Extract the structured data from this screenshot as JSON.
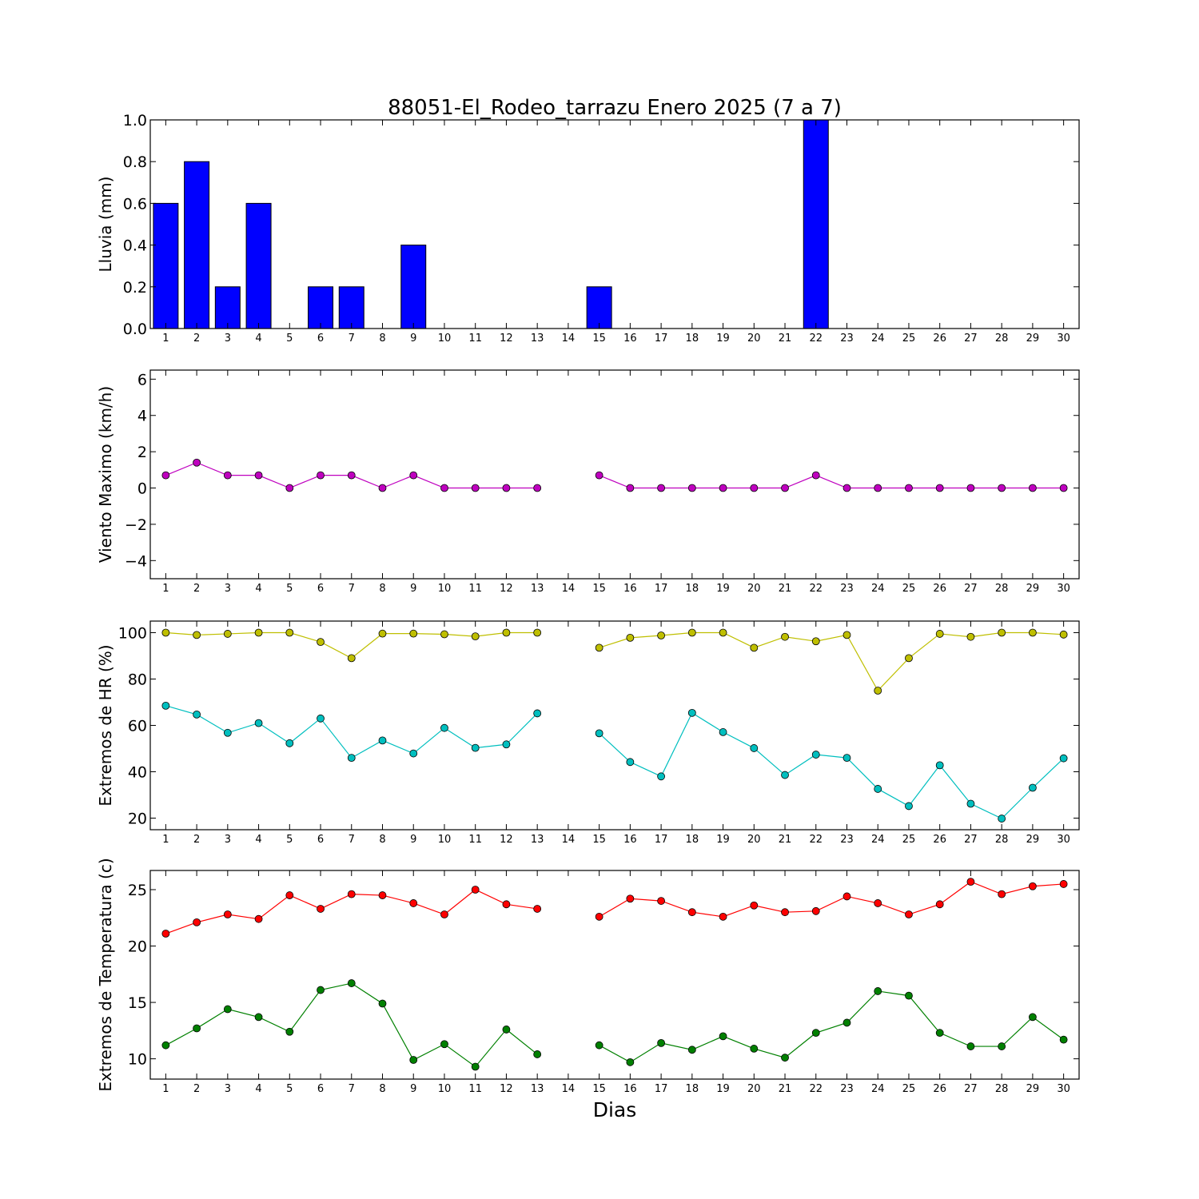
{
  "chart_data": {
    "title": "88051-El_Rodeo_tarrazu Enero 2025  (7 a 7)",
    "xlabel": "Dias",
    "x": [
      1,
      2,
      3,
      4,
      5,
      6,
      7,
      8,
      9,
      10,
      11,
      12,
      13,
      14,
      15,
      16,
      17,
      18,
      19,
      20,
      21,
      22,
      23,
      24,
      25,
      26,
      27,
      28,
      29,
      30
    ],
    "xlim": [
      0.5,
      30.5
    ],
    "panels": [
      {
        "type": "bar",
        "ylabel": "Lluvia (mm)",
        "ylim": [
          0,
          1.0
        ],
        "yticks": [
          0.0,
          0.2,
          0.4,
          0.6,
          0.8,
          1.0
        ],
        "ytick_labels": [
          "0.0",
          "0.2",
          "0.4",
          "0.6",
          "0.8",
          "1.0"
        ],
        "series": [
          {
            "color": "#0000ff",
            "values": [
              0.6,
              0.8,
              0.2,
              0.6,
              0,
              0.2,
              0.2,
              0,
              0.4,
              0,
              0,
              0,
              0,
              null,
              0.2,
              0,
              0,
              0,
              0,
              0,
              0,
              1.0,
              0,
              0,
              0,
              0,
              0,
              0,
              0,
              0
            ]
          }
        ]
      },
      {
        "type": "line",
        "ylabel": "Viento Maximo (km/h)",
        "ylim": [
          -5,
          6.5
        ],
        "yticks": [
          -4,
          -2,
          0,
          2,
          4,
          6
        ],
        "ytick_labels": [
          "−4",
          "−2",
          "0",
          "2",
          "4",
          "6"
        ],
        "series": [
          {
            "color": "#bf00bf",
            "values": [
              0.7,
              1.4,
              0.7,
              0.7,
              0,
              0.7,
              0.7,
              0,
              0.7,
              0,
              0,
              0,
              0,
              null,
              0.7,
              0,
              0,
              0,
              0,
              0,
              0,
              0.7,
              0,
              0,
              0,
              0,
              0,
              0,
              0,
              0
            ]
          }
        ]
      },
      {
        "type": "line",
        "ylabel": "Extremos de HR (%)",
        "ylim": [
          15,
          105
        ],
        "yticks": [
          20,
          40,
          60,
          80,
          100
        ],
        "ytick_labels": [
          "20",
          "40",
          "60",
          "80",
          "100"
        ],
        "series": [
          {
            "color": "#bfbf00",
            "values": [
              100,
              99,
              99.5,
              100,
              100,
              96,
              89,
              99.6,
              99.6,
              99.3,
              98.4,
              100,
              100,
              null,
              93.5,
              97.8,
              98.8,
              100,
              100,
              93.5,
              98.2,
              96.3,
              99,
              75,
              89,
              99.5,
              98.2,
              100,
              100,
              99.2
            ]
          },
          {
            "color": "#00bfbf",
            "values": [
              68.5,
              64.7,
              56.8,
              61,
              52.3,
              63,
              46,
              53.5,
              47.9,
              58.9,
              50.3,
              51.8,
              65.2,
              null,
              56.6,
              44.2,
              38,
              65.4,
              57.1,
              50.2,
              38.6,
              47.4,
              46,
              32.6,
              25.2,
              42.8,
              26.2,
              19.8,
              33.1,
              45.8
            ]
          }
        ]
      },
      {
        "type": "line",
        "ylabel": "Extremos de Temperatura (c)",
        "ylim": [
          8.2,
          26.7
        ],
        "yticks": [
          10,
          15,
          20,
          25
        ],
        "ytick_labels": [
          "10",
          "15",
          "20",
          "25"
        ],
        "series": [
          {
            "color": "#ff0000",
            "values": [
              21.1,
              22.1,
              22.8,
              22.4,
              24.5,
              23.3,
              24.6,
              24.5,
              23.8,
              22.8,
              25,
              23.7,
              23.3,
              null,
              22.6,
              24.2,
              24,
              23,
              22.6,
              23.6,
              23,
              23.1,
              24.4,
              23.8,
              22.8,
              23.7,
              25.7,
              24.6,
              25.3,
              25.5
            ]
          },
          {
            "color": "#008000",
            "values": [
              11.2,
              12.7,
              14.4,
              13.7,
              12.4,
              16.1,
              16.7,
              14.9,
              9.9,
              11.3,
              9.3,
              12.6,
              10.4,
              null,
              11.2,
              9.7,
              11.4,
              10.8,
              12,
              10.9,
              10.1,
              12.3,
              13.2,
              16,
              15.6,
              12.3,
              11.1,
              11.1,
              13.7,
              11.7
            ]
          }
        ]
      }
    ]
  }
}
